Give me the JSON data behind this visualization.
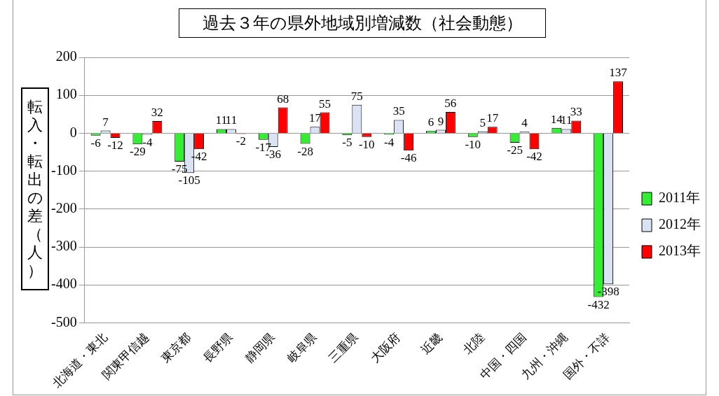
{
  "chart_data": {
    "type": "bar",
    "title": "過去３年の県外地域別増減数（社会動態）",
    "ylabel": "転入・転出の差（人）",
    "categories": [
      "北海道・東北",
      "関東甲信越",
      "東京都",
      "長野県",
      "静岡県",
      "岐阜県",
      "三重県",
      "大阪府",
      "近畿",
      "北陸",
      "中国・四国",
      "九州・沖縄",
      "国外・不詳"
    ],
    "series": [
      {
        "name": "2011年",
        "color": "#33ee33",
        "values": [
          -6,
          -29,
          -75,
          11,
          -17,
          -28,
          -5,
          -4,
          6,
          -10,
          -25,
          14,
          -432
        ]
      },
      {
        "name": "2012年",
        "color": "#dae3f3",
        "values": [
          7,
          -4,
          -105,
          11,
          -36,
          17,
          75,
          35,
          9,
          5,
          4,
          11,
          -398
        ]
      },
      {
        "name": "2013年",
        "color": "#ff0000",
        "values": [
          -12,
          32,
          -42,
          -2,
          68,
          55,
          -10,
          -46,
          56,
          17,
          -42,
          33,
          137
        ]
      }
    ],
    "ylim": [
      -500,
      200
    ],
    "yticks": [
      -500,
      -400,
      -300,
      -200,
      -100,
      0,
      100,
      200
    ],
    "grid": "y",
    "legend": "right",
    "data_labels": true
  }
}
